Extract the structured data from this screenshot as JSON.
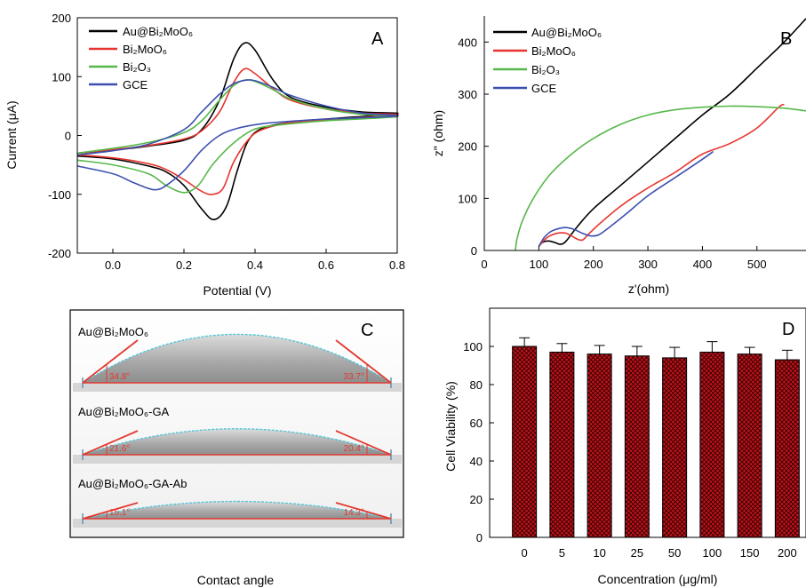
{
  "chart_data": [
    {
      "panel": "A",
      "type": "line",
      "xlabel": "Potential (V)",
      "ylabel": "Current (μA)",
      "xlim": [
        -0.1,
        0.8
      ],
      "ylim": [
        -200,
        200
      ],
      "xticks": [
        0.0,
        0.2,
        0.4,
        0.6,
        0.8
      ],
      "xtick_labels": [
        "0.0",
        "0.2",
        "0.4",
        "0.6",
        "0.8"
      ],
      "yticks": [
        -200,
        -100,
        0,
        100,
        200
      ],
      "ytick_labels": [
        "-200",
        "-100",
        "0",
        "100",
        "200"
      ],
      "legend_position": "top-left",
      "series": [
        {
          "name": "Au@Bi₂MoO₆",
          "color": "#000000",
          "forward": [
            [
              -0.1,
              -30
            ],
            [
              0.0,
              -25
            ],
            [
              0.1,
              -18
            ],
            [
              0.2,
              -8
            ],
            [
              0.25,
              10
            ],
            [
              0.3,
              60
            ],
            [
              0.34,
              130
            ],
            [
              0.37,
              157
            ],
            [
              0.4,
              145
            ],
            [
              0.45,
              95
            ],
            [
              0.5,
              65
            ],
            [
              0.6,
              48
            ],
            [
              0.7,
              40
            ],
            [
              0.8,
              37
            ]
          ],
          "reverse": [
            [
              0.8,
              37
            ],
            [
              0.6,
              28
            ],
            [
              0.5,
              22
            ],
            [
              0.42,
              12
            ],
            [
              0.38,
              -10
            ],
            [
              0.35,
              -60
            ],
            [
              0.32,
              -120
            ],
            [
              0.285,
              -143
            ],
            [
              0.25,
              -125
            ],
            [
              0.2,
              -85
            ],
            [
              0.15,
              -62
            ],
            [
              0.1,
              -52
            ],
            [
              0.0,
              -40
            ],
            [
              -0.1,
              -35
            ]
          ]
        },
        {
          "name": "Bi₂MoO₆",
          "color": "#e8342e",
          "forward": [
            [
              -0.1,
              -30
            ],
            [
              0.0,
              -24
            ],
            [
              0.1,
              -17
            ],
            [
              0.2,
              -6
            ],
            [
              0.25,
              8
            ],
            [
              0.3,
              40
            ],
            [
              0.34,
              90
            ],
            [
              0.37,
              113
            ],
            [
              0.4,
              105
            ],
            [
              0.45,
              80
            ],
            [
              0.5,
              60
            ],
            [
              0.6,
              45
            ],
            [
              0.7,
              38
            ],
            [
              0.8,
              35
            ]
          ],
          "reverse": [
            [
              0.8,
              35
            ],
            [
              0.6,
              27
            ],
            [
              0.5,
              22
            ],
            [
              0.42,
              10
            ],
            [
              0.38,
              -8
            ],
            [
              0.34,
              -45
            ],
            [
              0.31,
              -90
            ],
            [
              0.28,
              -100
            ],
            [
              0.25,
              -95
            ],
            [
              0.2,
              -75
            ],
            [
              0.15,
              -58
            ],
            [
              0.1,
              -48
            ],
            [
              0.0,
              -38
            ],
            [
              -0.1,
              -33
            ]
          ]
        },
        {
          "name": "Bi₂O₃",
          "color": "#55b848",
          "forward": [
            [
              -0.1,
              -30
            ],
            [
              0.0,
              -22
            ],
            [
              0.1,
              -12
            ],
            [
              0.2,
              5
            ],
            [
              0.25,
              25
            ],
            [
              0.3,
              60
            ],
            [
              0.34,
              85
            ],
            [
              0.37,
              94
            ],
            [
              0.4,
              92
            ],
            [
              0.45,
              78
            ],
            [
              0.5,
              62
            ],
            [
              0.6,
              45
            ],
            [
              0.7,
              36
            ],
            [
              0.8,
              32
            ]
          ],
          "reverse": [
            [
              0.8,
              32
            ],
            [
              0.6,
              25
            ],
            [
              0.5,
              20
            ],
            [
              0.42,
              14
            ],
            [
              0.38,
              5
            ],
            [
              0.33,
              -18
            ],
            [
              0.28,
              -50
            ],
            [
              0.24,
              -85
            ],
            [
              0.2,
              -97
            ],
            [
              0.15,
              -85
            ],
            [
              0.1,
              -65
            ],
            [
              0.0,
              -50
            ],
            [
              -0.1,
              -42
            ]
          ]
        },
        {
          "name": "GCE",
          "color": "#3c4fb0",
          "forward": [
            [
              -0.1,
              -33
            ],
            [
              0.0,
              -26
            ],
            [
              0.1,
              -15
            ],
            [
              0.2,
              10
            ],
            [
              0.25,
              40
            ],
            [
              0.3,
              70
            ],
            [
              0.34,
              88
            ],
            [
              0.375,
              94
            ],
            [
              0.4,
              93
            ],
            [
              0.45,
              82
            ],
            [
              0.5,
              68
            ],
            [
              0.6,
              50
            ],
            [
              0.7,
              38
            ],
            [
              0.8,
              33
            ]
          ],
          "reverse": [
            [
              0.8,
              33
            ],
            [
              0.6,
              28
            ],
            [
              0.5,
              24
            ],
            [
              0.42,
              20
            ],
            [
              0.35,
              12
            ],
            [
              0.3,
              0
            ],
            [
              0.25,
              -25
            ],
            [
              0.2,
              -60
            ],
            [
              0.15,
              -85
            ],
            [
              0.125,
              -92
            ],
            [
              0.1,
              -90
            ],
            [
              0.05,
              -78
            ],
            [
              0.0,
              -65
            ],
            [
              -0.1,
              -52
            ]
          ]
        }
      ]
    },
    {
      "panel": "B",
      "type": "line",
      "xlabel": "z'(ohm)",
      "ylabel": "z\" (ohm)",
      "xlim": [
        0,
        590
      ],
      "ylim": [
        0,
        450
      ],
      "xticks": [
        0,
        100,
        200,
        300,
        400,
        500
      ],
      "xtick_labels": [
        "0",
        "100",
        "200",
        "300",
        "400",
        "500"
      ],
      "yticks": [
        0,
        100,
        200,
        300,
        400
      ],
      "ytick_labels": [
        "0",
        "100",
        "200",
        "300",
        "400"
      ],
      "legend_position": "top-left",
      "series": [
        {
          "name": "Au@Bi₂MoO₆",
          "color": "#000000",
          "points": [
            [
              100,
              8
            ],
            [
              105,
              14
            ],
            [
              110,
              17
            ],
            [
              120,
              18
            ],
            [
              130,
              15
            ],
            [
              140,
              12
            ],
            [
              150,
              18
            ],
            [
              170,
              45
            ],
            [
              200,
              80
            ],
            [
              250,
              125
            ],
            [
              300,
              170
            ],
            [
              350,
              215
            ],
            [
              400,
              260
            ],
            [
              450,
              300
            ],
            [
              500,
              350
            ],
            [
              550,
              400
            ],
            [
              590,
              445
            ]
          ]
        },
        {
          "name": "Bi₂MoO₆",
          "color": "#e8342e",
          "points": [
            [
              100,
              8
            ],
            [
              110,
              20
            ],
            [
              120,
              28
            ],
            [
              130,
              32
            ],
            [
              140,
              34
            ],
            [
              150,
              33
            ],
            [
              160,
              28
            ],
            [
              170,
              22
            ],
            [
              180,
              20
            ],
            [
              190,
              30
            ],
            [
              210,
              50
            ],
            [
              250,
              85
            ],
            [
              300,
              120
            ],
            [
              350,
              150
            ],
            [
              400,
              185
            ],
            [
              450,
              205
            ],
            [
              500,
              235
            ],
            [
              540,
              275
            ],
            [
              550,
              280
            ]
          ]
        },
        {
          "name": "Bi₂O₃",
          "color": "#55b848",
          "points": [
            [
              57,
              0
            ],
            [
              60,
              22
            ],
            [
              70,
              57
            ],
            [
              90,
              100
            ],
            [
              120,
              145
            ],
            [
              160,
              185
            ],
            [
              200,
              215
            ],
            [
              250,
              242
            ],
            [
              300,
              260
            ],
            [
              350,
              270
            ],
            [
              400,
              275
            ],
            [
              450,
              277
            ],
            [
              500,
              276
            ],
            [
              550,
              273
            ],
            [
              590,
              268
            ]
          ]
        },
        {
          "name": "GCE",
          "color": "#3c4fb0",
          "points": [
            [
              100,
              8
            ],
            [
              110,
              25
            ],
            [
              120,
              35
            ],
            [
              130,
              40
            ],
            [
              140,
              43
            ],
            [
              150,
              44
            ],
            [
              160,
              42
            ],
            [
              170,
              38
            ],
            [
              180,
              33
            ],
            [
              195,
              28
            ],
            [
              210,
              30
            ],
            [
              230,
              45
            ],
            [
              260,
              70
            ],
            [
              300,
              105
            ],
            [
              350,
              140
            ],
            [
              400,
              175
            ],
            [
              420,
              190
            ]
          ]
        }
      ]
    },
    {
      "panel": "D",
      "type": "bar",
      "xlabel": "Concentration (μg/ml)",
      "ylabel": "Cell Viability (%)",
      "ylim": [
        0,
        120
      ],
      "yticks": [
        0,
        20,
        40,
        60,
        80,
        100
      ],
      "ytick_labels": [
        "0",
        "20",
        "40",
        "60",
        "80",
        "100"
      ],
      "categories": [
        "0",
        "5",
        "10",
        "25",
        "50",
        "100",
        "150",
        "200"
      ],
      "values": [
        100,
        97,
        96,
        95,
        94,
        97,
        96,
        93
      ],
      "errors": [
        4.5,
        4.5,
        4.5,
        5,
        5.5,
        5.5,
        3.5,
        5
      ],
      "bar_color": "#c0141c"
    }
  ],
  "panel_c": {
    "letter": "C",
    "caption": "Contact angle",
    "samples": [
      {
        "label": "Au@Bi₂MoO₆",
        "left_angle": "34.8°",
        "right_angle": "33.7°"
      },
      {
        "label": "Au@Bi₂MoO₆-GA",
        "left_angle": "21.6°",
        "right_angle": "20.4°"
      },
      {
        "label": "Au@Bi₂MoO₆-GA-Ab",
        "left_angle": "15.1°",
        "right_angle": "14.3°"
      }
    ]
  }
}
